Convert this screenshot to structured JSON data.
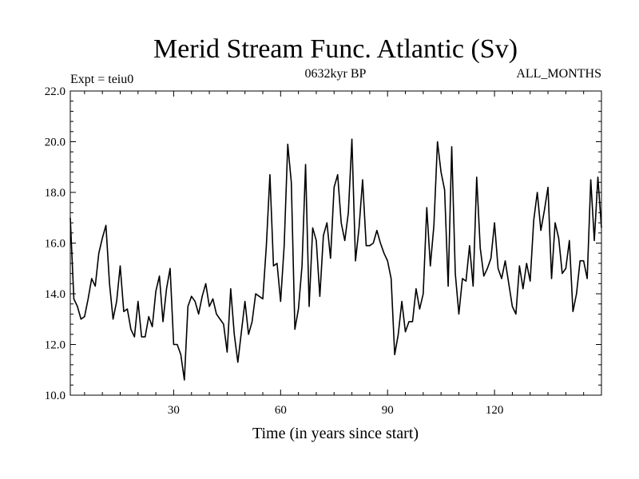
{
  "chart_data": {
    "type": "line",
    "title": "Merid Stream Func. Atlantic (Sv)",
    "subtitle_left": "Expt = teiu0",
    "subtitle_center": "0632kyr BP",
    "subtitle_right": "ALL_MONTHS",
    "xlabel": "Time (in years since start)",
    "ylabel": "",
    "xlim": [
      1,
      150
    ],
    "ylim": [
      10.0,
      22.0
    ],
    "xticks": [
      30,
      60,
      90,
      120
    ],
    "xtick_labels": [
      "30",
      "60",
      "90",
      "120"
    ],
    "yticks": [
      10,
      12,
      14,
      16,
      18,
      20,
      22
    ],
    "ytick_labels": [
      "10.0",
      "12.0",
      "14.0",
      "16.0",
      "18.0",
      "20.0",
      "22.0"
    ],
    "grid": false,
    "line_color": "#000000",
    "series": [
      {
        "name": "Merid Stream Func. Atlantic",
        "x": [
          1,
          2,
          3,
          4,
          5,
          6,
          7,
          8,
          9,
          10,
          11,
          12,
          13,
          14,
          15,
          16,
          17,
          18,
          19,
          20,
          21,
          22,
          23,
          24,
          25,
          26,
          27,
          28,
          29,
          30,
          31,
          32,
          33,
          34,
          35,
          36,
          37,
          38,
          39,
          40,
          41,
          42,
          43,
          44,
          45,
          46,
          47,
          48,
          49,
          50,
          51,
          52,
          53,
          54,
          55,
          56,
          57,
          58,
          59,
          60,
          61,
          62,
          63,
          64,
          65,
          66,
          67,
          68,
          69,
          70,
          71,
          72,
          73,
          74,
          75,
          76,
          77,
          78,
          79,
          80,
          81,
          82,
          83,
          84,
          85,
          86,
          87,
          88,
          89,
          90,
          91,
          92,
          93,
          94,
          95,
          96,
          97,
          98,
          99,
          100,
          101,
          102,
          103,
          104,
          105,
          106,
          107,
          108,
          109,
          110,
          111,
          112,
          113,
          114,
          115,
          116,
          117,
          118,
          119,
          120,
          121,
          122,
          123,
          124,
          125,
          126,
          127,
          128,
          129,
          130,
          131,
          132,
          133,
          134,
          135,
          136,
          137,
          138,
          139,
          140,
          141,
          142,
          143,
          144,
          145,
          146,
          147,
          148,
          149,
          150
        ],
        "values": [
          17.0,
          13.8,
          13.5,
          13.0,
          13.1,
          13.8,
          14.6,
          14.3,
          15.6,
          16.2,
          16.7,
          14.4,
          13.0,
          13.7,
          15.1,
          13.3,
          13.4,
          12.6,
          12.3,
          13.7,
          12.3,
          12.3,
          13.1,
          12.7,
          14.1,
          14.7,
          12.9,
          14.2,
          15.0,
          12.0,
          12.0,
          11.6,
          10.6,
          13.5,
          13.9,
          13.7,
          13.2,
          13.9,
          14.4,
          13.5,
          13.8,
          13.2,
          13.0,
          12.8,
          11.7,
          14.2,
          12.4,
          11.3,
          12.5,
          13.7,
          12.4,
          12.9,
          14.0,
          13.9,
          13.8,
          15.9,
          18.7,
          15.1,
          15.2,
          13.7,
          15.9,
          19.9,
          18.4,
          12.6,
          13.4,
          15.1,
          19.1,
          13.5,
          16.6,
          16.1,
          13.9,
          16.3,
          16.8,
          15.4,
          18.2,
          18.7,
          16.8,
          16.1,
          17.2,
          20.1,
          15.3,
          16.6,
          18.5,
          15.9,
          15.9,
          16.0,
          16.5,
          16.0,
          15.6,
          15.3,
          14.6,
          11.6,
          12.4,
          13.7,
          12.5,
          12.9,
          12.9,
          14.2,
          13.4,
          14.0,
          17.4,
          15.1,
          16.7,
          20.0,
          18.8,
          18.1,
          14.3,
          19.8,
          14.8,
          13.2,
          14.6,
          14.5,
          15.9,
          14.3,
          18.6,
          15.8,
          14.7,
          15.0,
          15.4,
          16.8,
          15.0,
          14.6,
          15.3,
          14.4,
          13.5,
          13.2,
          15.1,
          14.2,
          15.2,
          14.5,
          16.9,
          18.0,
          16.5,
          17.3,
          18.2,
          14.6,
          16.8,
          16.2,
          14.8,
          15.0,
          16.1,
          13.3,
          14.0,
          15.3,
          15.3,
          14.6,
          18.5,
          16.1,
          18.6,
          16.6
        ]
      }
    ]
  }
}
